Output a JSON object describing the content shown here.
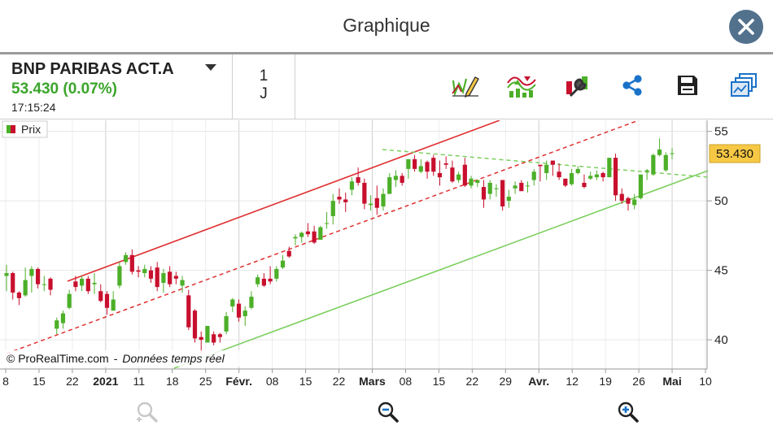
{
  "window": {
    "title": "Graphique"
  },
  "quote": {
    "name": "BNP PARIBAS ACT.A",
    "price_change": "53.430 (0.07%)",
    "time": "17:15:24"
  },
  "period": {
    "line1": "1",
    "line2": "J"
  },
  "toolbar": {
    "icons": [
      "draw-tool-icon",
      "indicators-icon",
      "settings-wrench-icon",
      "share-icon",
      "save-icon",
      "multi-chart-icon"
    ]
  },
  "chart": {
    "legend_label": "Prix",
    "last_price_label": "53.430",
    "copyright": "© ProRealTime.com",
    "copyright_suffix": "Données temps réel",
    "colors": {
      "up": "#4caf28",
      "down": "#c8102e",
      "resistance": "#e03030",
      "support": "#7ccf5f",
      "price_tag": "#f7c844"
    }
  },
  "chart_data": {
    "type": "candlestick",
    "y_ticks": [
      "55",
      "50",
      "45",
      "40"
    ],
    "ylim": [
      37.9,
      55.8
    ],
    "x_tick_labels": [
      {
        "label": "8",
        "bold": false
      },
      {
        "label": "15",
        "bold": false
      },
      {
        "label": "22",
        "bold": false
      },
      {
        "label": "2021",
        "bold": true
      },
      {
        "label": "11",
        "bold": false
      },
      {
        "label": "18",
        "bold": false
      },
      {
        "label": "25",
        "bold": false
      },
      {
        "label": "Févr.",
        "bold": true
      },
      {
        "label": "08",
        "bold": false
      },
      {
        "label": "15",
        "bold": false
      },
      {
        "label": "22",
        "bold": false
      },
      {
        "label": "Mars",
        "bold": true
      },
      {
        "label": "08",
        "bold": false
      },
      {
        "label": "15",
        "bold": false
      },
      {
        "label": "22",
        "bold": false
      },
      {
        "label": "29",
        "bold": false
      },
      {
        "label": "Avr.",
        "bold": true
      },
      {
        "label": "12",
        "bold": false
      },
      {
        "label": "19",
        "bold": false
      },
      {
        "label": "26",
        "bold": false
      },
      {
        "label": "Mai",
        "bold": true
      },
      {
        "label": "10",
        "bold": false
      }
    ],
    "candles": [
      [
        44.6,
        45.4,
        43.5,
        44.8
      ],
      [
        44.8,
        44.9,
        42.9,
        43.4
      ],
      [
        43.4,
        43.5,
        42.5,
        43.0
      ],
      [
        43.2,
        45.2,
        43.1,
        44.3
      ],
      [
        44.6,
        45.3,
        43.4,
        45.1
      ],
      [
        45.1,
        45.2,
        43.7,
        44.0
      ],
      [
        44.0,
        44.6,
        43.5,
        44.0
      ],
      [
        44.4,
        44.5,
        43.2,
        43.6
      ],
      [
        40.8,
        41.6,
        40.4,
        41.4
      ],
      [
        41.2,
        42.1,
        40.8,
        41.9
      ],
      [
        42.3,
        43.6,
        42.2,
        43.3
      ],
      [
        44.2,
        44.6,
        43.5,
        43.8
      ],
      [
        43.9,
        44.6,
        43.5,
        44.4
      ],
      [
        44.4,
        44.6,
        43.3,
        43.5
      ],
      [
        44.0,
        44.8,
        43.3,
        44.1
      ],
      [
        43.5,
        44.0,
        42.7,
        42.8
      ],
      [
        43.3,
        43.5,
        41.8,
        42.3
      ],
      [
        42.1,
        43.5,
        42.1,
        42.9
      ],
      [
        43.9,
        45.6,
        43.7,
        45.3
      ],
      [
        45.6,
        46.3,
        45.4,
        46.1
      ],
      [
        46.1,
        46.5,
        44.7,
        44.9
      ],
      [
        45.0,
        45.3,
        44.5,
        44.9
      ],
      [
        44.8,
        45.4,
        44.5,
        45.1
      ],
      [
        45.0,
        45.3,
        44.1,
        44.4
      ],
      [
        45.2,
        45.6,
        43.5,
        43.8
      ],
      [
        44.1,
        45.1,
        43.4,
        44.8
      ],
      [
        44.9,
        45.3,
        43.8,
        44.0
      ],
      [
        44.6,
        44.9,
        44.0,
        44.4
      ],
      [
        43.9,
        44.6,
        43.4,
        44.3
      ],
      [
        43.2,
        43.6,
        40.7,
        40.9
      ],
      [
        42.1,
        42.2,
        39.8,
        40.1
      ],
      [
        40.2,
        40.6,
        39.0,
        40.0
      ],
      [
        39.8,
        41.0,
        39.8,
        41.0
      ],
      [
        40.4,
        40.6,
        39.6,
        39.8
      ],
      [
        40.4,
        40.5,
        39.8,
        40.2
      ],
      [
        40.6,
        42.0,
        40.4,
        41.7
      ],
      [
        42.4,
        43.0,
        42.0,
        42.9
      ],
      [
        42.6,
        42.9,
        41.3,
        41.6
      ],
      [
        41.7,
        42.4,
        41.0,
        42.1
      ],
      [
        42.3,
        43.5,
        42.2,
        43.1
      ],
      [
        44.0,
        44.7,
        43.8,
        44.5
      ],
      [
        44.4,
        44.8,
        43.8,
        43.9
      ],
      [
        44.4,
        45.3,
        44.0,
        44.2
      ],
      [
        44.4,
        45.3,
        44.2,
        45.1
      ],
      [
        45.2,
        46.1,
        45.1,
        45.7
      ],
      [
        46.4,
        46.7,
        45.9,
        46.0
      ],
      [
        47.3,
        47.6,
        46.8,
        47.4
      ],
      [
        47.4,
        47.8,
        47.0,
        47.7
      ],
      [
        47.8,
        48.4,
        47.4,
        47.6
      ],
      [
        47.8,
        48.2,
        46.9,
        47.0
      ],
      [
        47.2,
        48.2,
        47.2,
        48.1
      ],
      [
        48.4,
        49.2,
        48.0,
        48.4
      ],
      [
        48.9,
        50.5,
        48.3,
        50.0
      ],
      [
        50.3,
        50.9,
        49.8,
        50.1
      ],
      [
        50.1,
        50.6,
        49.2,
        49.9
      ],
      [
        50.8,
        51.7,
        50.4,
        51.4
      ],
      [
        51.7,
        52.4,
        51.1,
        51.3
      ],
      [
        51.3,
        51.6,
        49.4,
        49.8
      ],
      [
        49.7,
        50.4,
        49.3,
        49.8
      ],
      [
        50.2,
        51.1,
        49.0,
        49.5
      ],
      [
        49.6,
        50.9,
        49.3,
        50.5
      ],
      [
        50.5,
        52.0,
        50.5,
        51.7
      ],
      [
        51.5,
        52.2,
        51.0,
        51.8
      ],
      [
        51.8,
        52.0,
        51.1,
        51.3
      ],
      [
        52.3,
        53.0,
        51.6,
        53.0
      ],
      [
        53.0,
        53.3,
        52.1,
        52.3
      ],
      [
        52.1,
        53.0,
        52.0,
        52.5
      ],
      [
        52.8,
        52.9,
        51.6,
        52.1
      ],
      [
        53.1,
        53.3,
        51.8,
        52.1
      ],
      [
        52.0,
        52.9,
        51.1,
        51.7
      ],
      [
        52.7,
        53.2,
        52.3,
        52.6
      ],
      [
        52.4,
        52.9,
        51.3,
        51.4
      ],
      [
        51.5,
        52.1,
        51.3,
        51.9
      ],
      [
        52.6,
        53.1,
        51.0,
        51.1
      ],
      [
        51.1,
        51.8,
        50.9,
        51.6
      ],
      [
        51.3,
        51.5,
        51.0,
        51.5
      ],
      [
        51.0,
        51.5,
        49.5,
        50.1
      ],
      [
        50.5,
        51.5,
        50.1,
        51.3
      ],
      [
        50.9,
        51.2,
        50.3,
        50.9
      ],
      [
        51.5,
        51.4,
        49.3,
        49.6
      ],
      [
        50.0,
        50.8,
        49.5,
        50.3
      ],
      [
        50.9,
        51.4,
        50.5,
        51.1
      ],
      [
        51.3,
        51.5,
        50.7,
        50.7
      ],
      [
        51.1,
        51.4,
        50.6,
        51.1
      ],
      [
        51.5,
        52.3,
        51.1,
        52.1
      ],
      [
        52.6,
        52.5,
        51.4,
        52.5
      ],
      [
        52.0,
        52.9,
        51.5,
        52.6
      ],
      [
        52.9,
        52.9,
        51.8,
        52.6
      ],
      [
        52.1,
        52.7,
        51.5,
        51.7
      ],
      [
        51.6,
        51.6,
        51.0,
        51.1
      ],
      [
        51.2,
        52.3,
        51.1,
        52.0
      ],
      [
        52.0,
        52.5,
        51.9,
        52.3
      ],
      [
        51.3,
        51.9,
        50.9,
        51.0
      ],
      [
        51.6,
        52.1,
        51.5,
        51.8
      ],
      [
        51.7,
        52.2,
        51.5,
        51.9
      ],
      [
        52.0,
        52.1,
        51.4,
        51.7
      ],
      [
        51.7,
        53.1,
        51.7,
        53.1
      ],
      [
        53.1,
        53.4,
        50.0,
        50.4
      ],
      [
        50.5,
        50.9,
        49.8,
        50.0
      ],
      [
        50.2,
        50.3,
        49.3,
        49.8
      ],
      [
        49.7,
        50.5,
        49.4,
        50.1
      ],
      [
        50.2,
        51.8,
        50.1,
        51.9
      ],
      [
        52.1,
        52.3,
        51.5,
        52.2
      ],
      [
        51.9,
        53.4,
        51.8,
        53.3
      ],
      [
        53.3,
        54.5,
        53.2,
        53.7
      ],
      [
        52.2,
        53.5,
        52.1,
        53.3
      ],
      [
        53.4,
        53.8,
        53.0,
        53.43
      ]
    ]
  },
  "bottombar": {
    "icons": [
      "zoom-fit-icon",
      "zoom-out-icon",
      "zoom-in-icon"
    ]
  }
}
